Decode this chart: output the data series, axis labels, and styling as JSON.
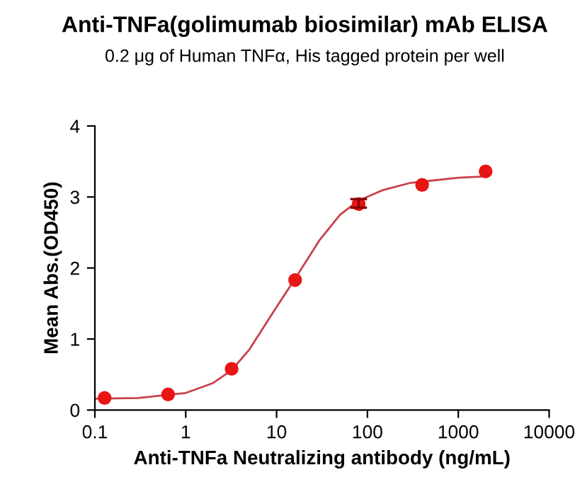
{
  "chart_data": {
    "type": "scatter",
    "title": "Anti-TNFa(golimumab biosimilar) mAb ELISA",
    "subtitle": "0.2 μg of Human TNFα, His tagged protein per well",
    "xlabel": "Anti-TNFa Neutralizing antibody (ng/mL)",
    "ylabel": "Mean Abs.(OD450)",
    "log": "x",
    "xlim": [
      0.1,
      10000
    ],
    "xticks": [
      0.1,
      1,
      10,
      100,
      1000,
      10000
    ],
    "ylim": [
      0,
      4
    ],
    "yticks": [
      0,
      1,
      2,
      3,
      4
    ],
    "grid": false,
    "series": [
      {
        "type": "line",
        "color": "#c8404a",
        "marker": "none",
        "line_style": "solid",
        "x": [
          0.1,
          0.3,
          1,
          2,
          3.2,
          5,
          10,
          16,
          30,
          50,
          80,
          150,
          300,
          1000,
          2000
        ],
        "values": [
          0.16,
          0.17,
          0.24,
          0.38,
          0.56,
          0.85,
          1.45,
          1.85,
          2.4,
          2.75,
          2.95,
          3.1,
          3.2,
          3.27,
          3.29
        ]
      },
      {
        "type": "scatter",
        "color": "#e81515",
        "marker": "circle",
        "x": [
          0.128,
          0.64,
          3.2,
          16,
          80,
          400,
          2000
        ],
        "values": [
          0.17,
          0.22,
          0.58,
          1.83,
          2.9,
          3.17,
          3.36
        ],
        "errors": [
          null,
          null,
          null,
          null,
          [
            2.85,
            2.97
          ],
          null,
          null
        ]
      }
    ]
  }
}
